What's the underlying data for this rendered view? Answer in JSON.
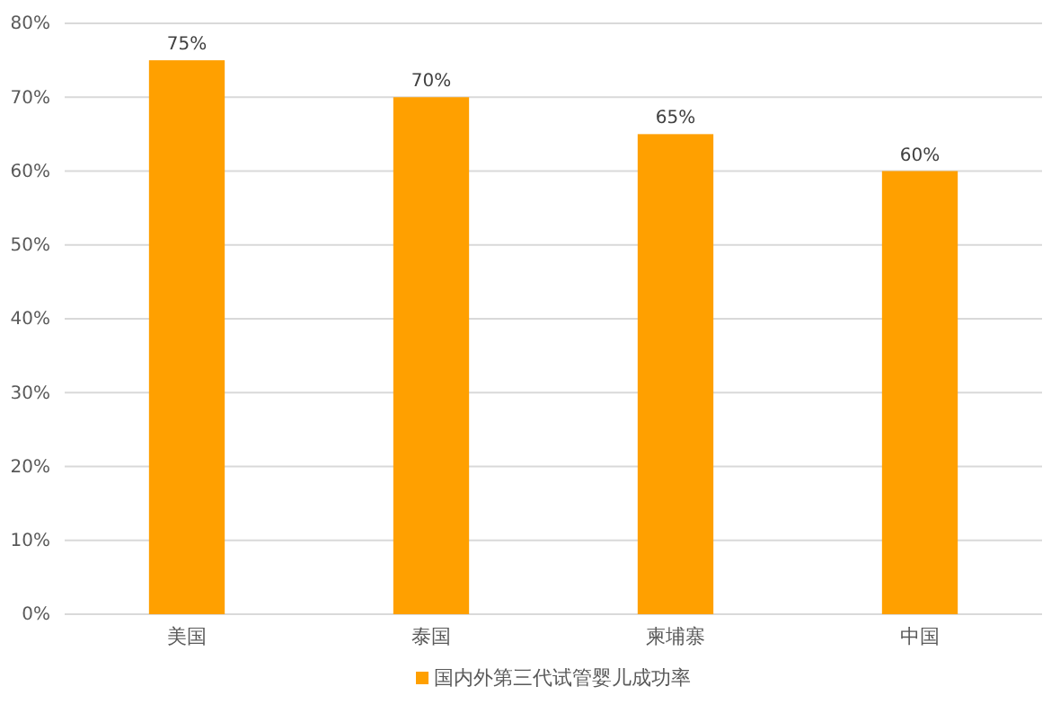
{
  "chart_data": {
    "type": "bar",
    "categories": [
      "美国",
      "泰国",
      "柬埔寨",
      "中国"
    ],
    "series": [
      {
        "name": "国内外第三代试管婴儿成功率",
        "color": "#ffa000",
        "values": [
          75,
          70,
          65,
          60
        ],
        "value_labels": [
          "75%",
          "70%",
          "65%",
          "60%"
        ]
      }
    ],
    "ylim": [
      0,
      80
    ],
    "yticks": [
      {
        "value": 0,
        "label": "0%"
      },
      {
        "value": 10,
        "label": "10%"
      },
      {
        "value": 20,
        "label": "20%"
      },
      {
        "value": 30,
        "label": "30%"
      },
      {
        "value": 40,
        "label": "40%"
      },
      {
        "value": 50,
        "label": "50%"
      },
      {
        "value": 60,
        "label": "60%"
      },
      {
        "value": 70,
        "label": "70%"
      },
      {
        "value": 80,
        "label": "80%"
      }
    ],
    "grid": "y",
    "legend": "bottom"
  }
}
